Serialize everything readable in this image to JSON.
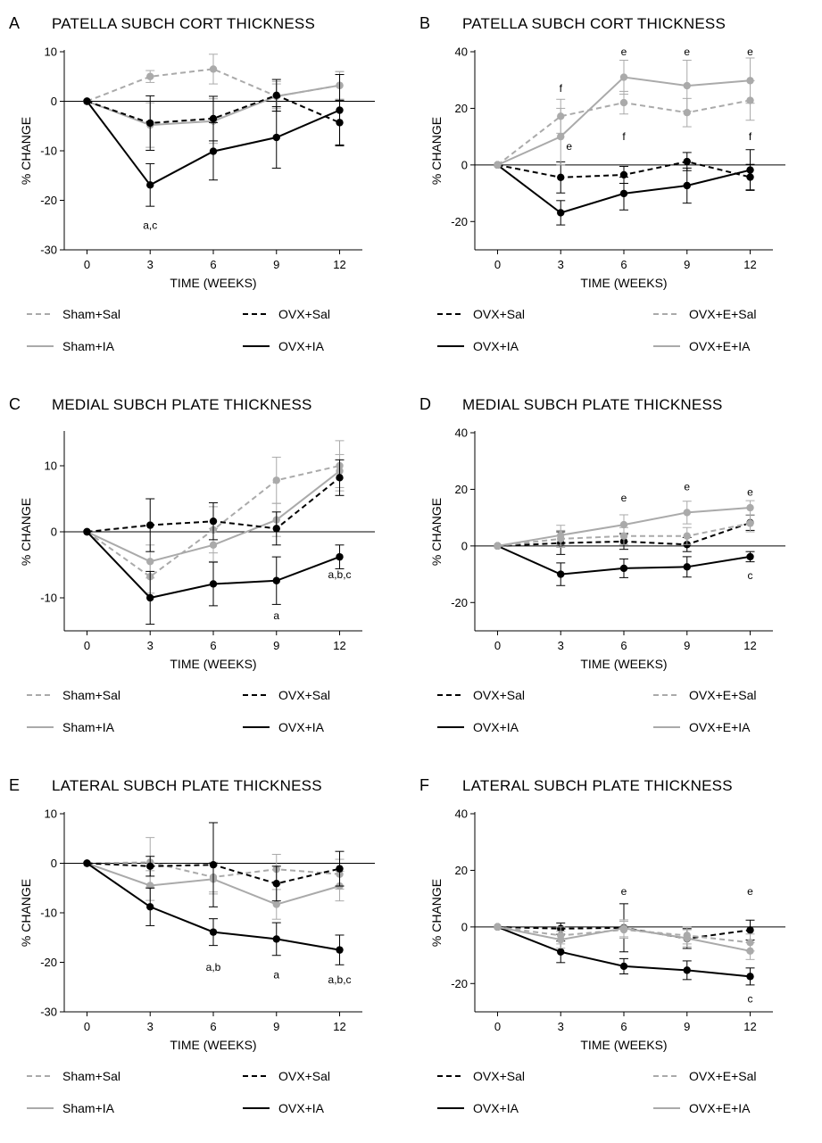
{
  "colors": {
    "black": "#000000",
    "gray": "#aaaaaa"
  },
  "series_styles": {
    "Sham+Sal": {
      "color": "#aaaaaa",
      "dash": true
    },
    "Sham+IA": {
      "color": "#aaaaaa",
      "dash": false
    },
    "OVX+Sal": {
      "color": "#000000",
      "dash": true
    },
    "OVX+IA": {
      "color": "#000000",
      "dash": false
    },
    "OVX+E+Sal": {
      "color": "#aaaaaa",
      "dash": true
    },
    "OVX+E+IA": {
      "color": "#aaaaaa",
      "dash": false
    }
  },
  "chart_data": [
    {
      "id": "A",
      "letter": "A",
      "type": "line",
      "title": "PATELLA SUBCH CORT THICKNESS",
      "xlabel": "TIME (WEEKS)",
      "ylabel": "% CHANGE",
      "x": [
        0,
        3,
        6,
        9,
        12
      ],
      "ylim": [
        -30,
        10
      ],
      "yticks": [
        10,
        0,
        -10,
        -20,
        -30
      ],
      "grid": false,
      "zero_line": true,
      "series": [
        {
          "name": "Sham+Sal",
          "values": [
            0,
            5,
            6.5,
            1,
            3.2
          ],
          "errors": [
            0,
            1.2,
            3,
            2.5,
            2.8
          ]
        },
        {
          "name": "Sham+IA",
          "values": [
            0,
            -4.8,
            -4,
            1,
            3.2
          ],
          "errors": [
            0,
            4.5,
            4.5,
            3,
            2.8
          ]
        },
        {
          "name": "OVX+Sal",
          "values": [
            0,
            -4.4,
            -3.5,
            1.2,
            -4.3
          ],
          "errors": [
            0,
            5.5,
            4.5,
            3.2,
            4.5
          ]
        },
        {
          "name": "OVX+IA",
          "values": [
            0,
            -16.9,
            -10.1,
            -7.3,
            -1.8
          ],
          "errors": [
            0,
            4.3,
            5.8,
            6.2,
            7.2
          ]
        }
      ],
      "annotations": [
        {
          "text": "a,c",
          "x": 3,
          "y": -25
        }
      ],
      "legend_order": [
        "Sham+Sal",
        "OVX+Sal",
        "Sham+IA",
        "OVX+IA"
      ]
    },
    {
      "id": "B",
      "letter": "B",
      "type": "line",
      "title": "PATELLA SUBCH CORT THICKNESS",
      "xlabel": "TIME (WEEKS)",
      "ylabel": "% CHANGE",
      "x": [
        0,
        3,
        6,
        9,
        12
      ],
      "ylim": [
        -30,
        40
      ],
      "yticks": [
        40,
        20,
        0,
        -20
      ],
      "grid": false,
      "zero_line": true,
      "series": [
        {
          "name": "OVX+Sal",
          "values": [
            0,
            -4.4,
            -3.5,
            1.2,
            -4.3
          ],
          "errors": [
            0,
            5.5,
            3,
            3.2,
            4.5
          ]
        },
        {
          "name": "OVX+IA",
          "values": [
            0,
            -16.9,
            -10.1,
            -7.3,
            -1.8
          ],
          "errors": [
            0,
            4.3,
            5.8,
            6.2,
            7.2
          ]
        },
        {
          "name": "OVX+E+Sal",
          "values": [
            0,
            17.2,
            22,
            18.5,
            22.8
          ],
          "errors": [
            0,
            6,
            4,
            5,
            7
          ]
        },
        {
          "name": "OVX+E+IA",
          "values": [
            0,
            10,
            31,
            28,
            29.8
          ],
          "errors": [
            0,
            10,
            6,
            9,
            8
          ]
        }
      ],
      "annotations": [
        {
          "text": "f",
          "x": 3,
          "y": 27
        },
        {
          "text": "e",
          "x": 3.4,
          "y": 6.5
        },
        {
          "text": "e",
          "x": 6,
          "y": 40
        },
        {
          "text": "f",
          "x": 6,
          "y": 10
        },
        {
          "text": "e",
          "x": 9,
          "y": 40
        },
        {
          "text": "e",
          "x": 12,
          "y": 40
        },
        {
          "text": "f",
          "x": 12,
          "y": 10
        }
      ],
      "legend_order": [
        "OVX+Sal",
        "OVX+E+Sal",
        "OVX+IA",
        "OVX+E+IA"
      ]
    },
    {
      "id": "C",
      "letter": "C",
      "type": "line",
      "title": "MEDIAL SUBCH PLATE THICKNESS",
      "xlabel": "TIME (WEEKS)",
      "ylabel": "% CHANGE",
      "x": [
        0,
        3,
        6,
        9,
        12
      ],
      "ylim": [
        -15,
        15
      ],
      "yticks": [
        10,
        0,
        -10
      ],
      "grid": false,
      "zero_line": true,
      "series": [
        {
          "name": "Sham+Sal",
          "values": [
            0,
            -6.8,
            0.3,
            7.8,
            10
          ],
          "errors": [
            0,
            2.5,
            3.5,
            3.5,
            3.8
          ]
        },
        {
          "name": "Sham+IA",
          "values": [
            0,
            -4.5,
            -2,
            1.8,
            9.2
          ],
          "errors": [
            0,
            2.5,
            2.5,
            2.5,
            2.5
          ]
        },
        {
          "name": "OVX+Sal",
          "values": [
            0,
            1,
            1.6,
            0.5,
            8.2
          ],
          "errors": [
            0,
            4,
            2.8,
            2.5,
            2.7
          ]
        },
        {
          "name": "OVX+IA",
          "values": [
            0,
            -10,
            -7.9,
            -7.4,
            -3.8
          ],
          "errors": [
            0,
            4,
            3.3,
            3.6,
            1.8
          ]
        }
      ],
      "annotations": [
        {
          "text": "a",
          "x": 9,
          "y": -12.7
        },
        {
          "text": "a,b,c",
          "x": 12,
          "y": -6.5
        }
      ],
      "legend_order": [
        "Sham+Sal",
        "OVX+Sal",
        "Sham+IA",
        "OVX+IA"
      ]
    },
    {
      "id": "D",
      "letter": "D",
      "type": "line",
      "title": "MEDIAL SUBCH PLATE THICKNESS",
      "xlabel": "TIME (WEEKS)",
      "ylabel": "% CHANGE",
      "x": [
        0,
        3,
        6,
        9,
        12
      ],
      "ylim": [
        -30,
        40
      ],
      "yticks": [
        40,
        20,
        0,
        -20
      ],
      "grid": false,
      "zero_line": true,
      "series": [
        {
          "name": "OVX+Sal",
          "values": [
            0,
            1,
            1.6,
            0.5,
            8.2
          ],
          "errors": [
            0,
            4,
            2.8,
            2.5,
            2.7
          ]
        },
        {
          "name": "OVX+IA",
          "values": [
            0,
            -10,
            -7.9,
            -7.4,
            -3.8
          ],
          "errors": [
            0,
            4,
            3.3,
            3.6,
            1.8
          ]
        },
        {
          "name": "OVX+E+Sal",
          "values": [
            0,
            2.5,
            3.5,
            3.5,
            8
          ],
          "errors": [
            0,
            3,
            3,
            3,
            3
          ]
        },
        {
          "name": "OVX+E+IA",
          "values": [
            0,
            3.8,
            7.5,
            11.8,
            13.5
          ],
          "errors": [
            0,
            3.5,
            3.5,
            4,
            2.5
          ]
        }
      ],
      "annotations": [
        {
          "text": "e",
          "x": 6,
          "y": 17
        },
        {
          "text": "e",
          "x": 9,
          "y": 21
        },
        {
          "text": "e",
          "x": 12,
          "y": 19
        },
        {
          "text": "c",
          "x": 12,
          "y": -10.5
        }
      ],
      "legend_order": [
        "OVX+Sal",
        "OVX+E+Sal",
        "OVX+IA",
        "OVX+E+IA"
      ]
    },
    {
      "id": "E",
      "letter": "E",
      "type": "line",
      "title": "LATERAL SUBCH PLATE THICKNESS",
      "xlabel": "TIME (WEEKS)",
      "ylabel": "% CHANGE",
      "x": [
        0,
        3,
        6,
        9,
        12
      ],
      "ylim": [
        -30,
        10
      ],
      "yticks": [
        10,
        0,
        -10,
        -20,
        -30
      ],
      "grid": false,
      "zero_line": true,
      "series": [
        {
          "name": "Sham+Sal",
          "values": [
            0,
            0.2,
            -2.8,
            -1.2,
            -2.2
          ],
          "errors": [
            0,
            5,
            3,
            3,
            3
          ]
        },
        {
          "name": "Sham+IA",
          "values": [
            0,
            -4.5,
            -3.2,
            -8.3,
            -4.6
          ],
          "errors": [
            0,
            3,
            3,
            3,
            3
          ]
        },
        {
          "name": "OVX+Sal",
          "values": [
            0,
            -0.6,
            -0.3,
            -4.1,
            -1.1
          ],
          "errors": [
            0,
            2,
            8.5,
            3.5,
            3.5
          ]
        },
        {
          "name": "OVX+IA",
          "values": [
            0,
            -8.8,
            -13.9,
            -15.3,
            -17.5
          ],
          "errors": [
            0,
            3.8,
            2.7,
            3.3,
            3
          ]
        }
      ],
      "annotations": [
        {
          "text": "a,b",
          "x": 6,
          "y": -21
        },
        {
          "text": "a",
          "x": 9,
          "y": -22.5
        },
        {
          "text": "a,b,c",
          "x": 12,
          "y": -23.5
        }
      ],
      "legend_order": [
        "Sham+Sal",
        "OVX+Sal",
        "Sham+IA",
        "OVX+IA"
      ]
    },
    {
      "id": "F",
      "letter": "F",
      "type": "line",
      "title": "LATERAL SUBCH PLATE THICKNESS",
      "xlabel": "TIME (WEEKS)",
      "ylabel": "% CHANGE",
      "x": [
        0,
        3,
        6,
        9,
        12
      ],
      "ylim": [
        -30,
        40
      ],
      "yticks": [
        40,
        20,
        0,
        -20
      ],
      "grid": false,
      "zero_line": true,
      "series": [
        {
          "name": "OVX+Sal",
          "values": [
            0,
            -0.6,
            -0.3,
            -4.1,
            -1.1
          ],
          "errors": [
            0,
            2,
            8.5,
            3.5,
            3.5
          ]
        },
        {
          "name": "OVX+IA",
          "values": [
            0,
            -8.8,
            -13.9,
            -15.3,
            -17.5
          ],
          "errors": [
            0,
            3.8,
            2.7,
            3.3,
            3
          ]
        },
        {
          "name": "OVX+E+Sal",
          "values": [
            0,
            -3,
            -1,
            -3,
            -5.5
          ],
          "errors": [
            0,
            3,
            3,
            3,
            3
          ]
        },
        {
          "name": "OVX+E+IA",
          "values": [
            0,
            -4.5,
            -0.5,
            -4,
            -8.5
          ],
          "errors": [
            0,
            3,
            3,
            3,
            3
          ]
        }
      ],
      "annotations": [
        {
          "text": "e",
          "x": 6,
          "y": 12.5
        },
        {
          "text": "e",
          "x": 12,
          "y": 12.5
        },
        {
          "text": "c",
          "x": 12,
          "y": -25.5
        }
      ],
      "legend_order": [
        "OVX+Sal",
        "OVX+E+Sal",
        "OVX+IA",
        "OVX+E+IA"
      ]
    }
  ]
}
